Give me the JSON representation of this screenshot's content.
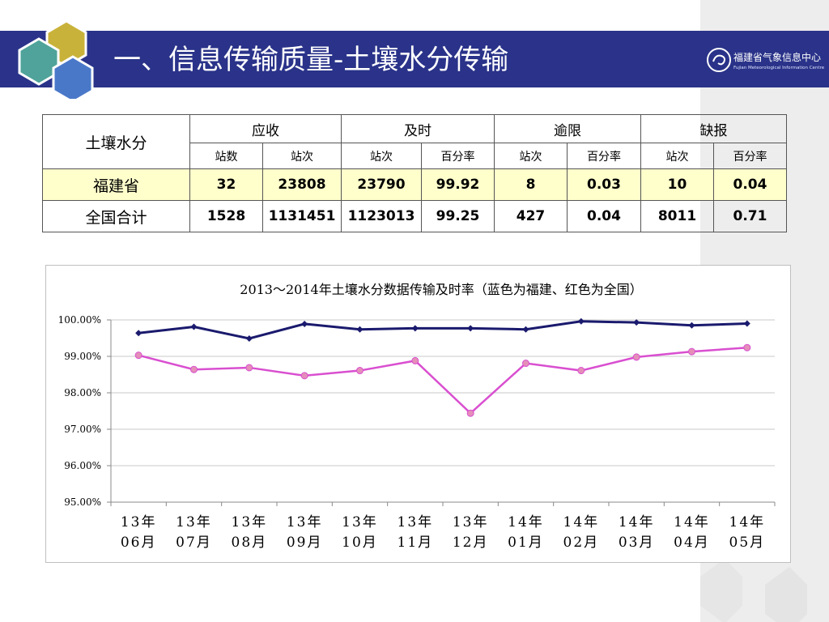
{
  "header": {
    "title": "一、信息传输质量-土壤水分传输",
    "logo_cn": "福建省气象信息中心",
    "logo_en": "Fujian Meteorological Information Centre"
  },
  "table": {
    "corner": "土壤水分",
    "groups": [
      "应收",
      "及时",
      "逾限",
      "缺报"
    ],
    "subheaders": [
      "站数",
      "站次",
      "站次",
      "百分率",
      "站次",
      "百分率",
      "站次",
      "百分率"
    ],
    "rows": [
      {
        "region": "福建省",
        "values": [
          "32",
          "23808",
          "23790",
          "99.92",
          "8",
          "0.03",
          "10",
          "0.04"
        ]
      },
      {
        "region": "全国合计",
        "values": [
          "1528",
          "1131451",
          "1123013",
          "99.25",
          "427",
          "0.04",
          "8011",
          "0.71"
        ]
      }
    ]
  },
  "chart_data": {
    "type": "line",
    "title": "2013～2014年土壤水分数据传输及时率（蓝色为福建、红色为全国）",
    "categories": [
      [
        "13年",
        "06月"
      ],
      [
        "13年",
        "07月"
      ],
      [
        "13年",
        "08月"
      ],
      [
        "13年",
        "09月"
      ],
      [
        "13年",
        "10月"
      ],
      [
        "13年",
        "11月"
      ],
      [
        "13年",
        "12月"
      ],
      [
        "14年",
        "01月"
      ],
      [
        "14年",
        "02月"
      ],
      [
        "14年",
        "03月"
      ],
      [
        "14年",
        "04月"
      ],
      [
        "14年",
        "05月"
      ]
    ],
    "series": [
      {
        "color": "#1a1a6e",
        "values": [
          99.64,
          99.81,
          99.49,
          99.89,
          99.74,
          99.77,
          99.77,
          99.74,
          99.96,
          99.93,
          99.85,
          99.9
        ]
      },
      {
        "color": "#d94fd0",
        "values": [
          99.03,
          98.64,
          98.69,
          98.47,
          98.61,
          98.88,
          97.44,
          98.81,
          98.61,
          98.98,
          99.13,
          99.24
        ]
      }
    ],
    "ylim": [
      95,
      100
    ],
    "yticks": [
      "95.00%",
      "96.00%",
      "97.00%",
      "98.00%",
      "99.00%",
      "100.00%"
    ],
    "grid": true,
    "legend": "none"
  }
}
